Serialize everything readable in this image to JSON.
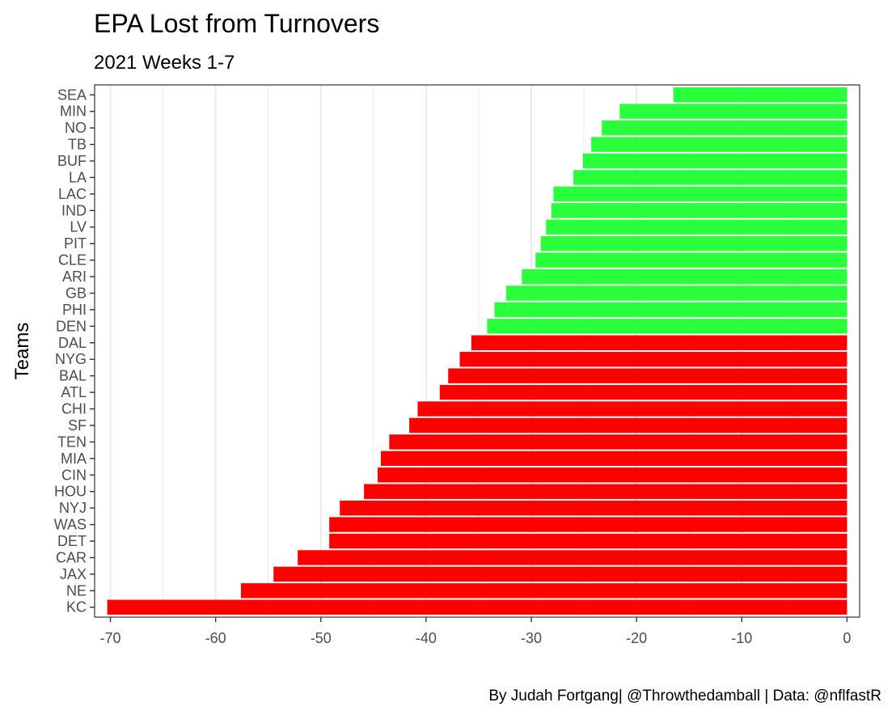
{
  "chart_data": {
    "type": "bar",
    "orientation": "horizontal",
    "title": "EPA Lost from Turnovers",
    "subtitle": "2021 Weeks 1-7",
    "xlabel": "",
    "ylabel": "Teams",
    "caption": "By Judah Fortgang| @Throwthedamball | Data: @nflfastR",
    "xlim": [
      -71.5,
      1.2
    ],
    "x_ticks": [
      -70,
      -60,
      -50,
      -40,
      -30,
      -20,
      -10,
      0
    ],
    "x_tick_labels": [
      "-70",
      "-60",
      "-50",
      "-40",
      "-30",
      "-20",
      "-10",
      "0"
    ],
    "grid": "vertical major and minor lines",
    "colors": {
      "green": "#29ff3a",
      "red": "#ff0000",
      "grid": "#ebebeb",
      "panel_border": "#333333",
      "tick_text": "#4d4d4d"
    },
    "categories": [
      "SEA",
      "MIN",
      "NO",
      "TB",
      "BUF",
      "LA",
      "LAC",
      "IND",
      "LV",
      "PIT",
      "CLE",
      "ARI",
      "GB",
      "PHI",
      "DEN",
      "DAL",
      "NYG",
      "BAL",
      "ATL",
      "CHI",
      "SF",
      "TEN",
      "MIA",
      "CIN",
      "HOU",
      "NYJ",
      "WAS",
      "DET",
      "CAR",
      "JAX",
      "NE",
      "KC"
    ],
    "values": [
      -16.5,
      -21.6,
      -23.3,
      -24.3,
      -25.1,
      -26.0,
      -27.9,
      -28.1,
      -28.6,
      -29.1,
      -29.6,
      -30.9,
      -32.4,
      -33.5,
      -34.2,
      -35.7,
      -36.8,
      -37.9,
      -38.7,
      -40.8,
      -41.6,
      -43.5,
      -44.3,
      -44.6,
      -45.9,
      -48.2,
      -49.2,
      -49.2,
      -52.2,
      -54.5,
      -57.6,
      -70.3
    ],
    "bar_colors": [
      "green",
      "green",
      "green",
      "green",
      "green",
      "green",
      "green",
      "green",
      "green",
      "green",
      "green",
      "green",
      "green",
      "green",
      "green",
      "red",
      "red",
      "red",
      "red",
      "red",
      "red",
      "red",
      "red",
      "red",
      "red",
      "red",
      "red",
      "red",
      "red",
      "red",
      "red",
      "red"
    ]
  }
}
